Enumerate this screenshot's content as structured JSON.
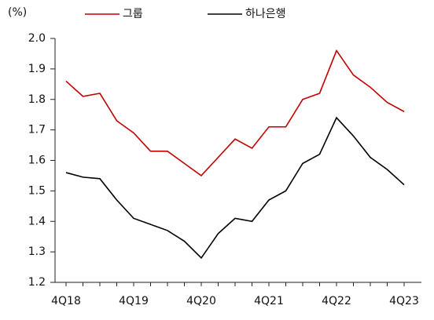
{
  "chart_data": {
    "type": "line",
    "y_label": "(%)",
    "categories": [
      "4Q18",
      null,
      null,
      null,
      "4Q19",
      null,
      null,
      null,
      "4Q20",
      null,
      null,
      null,
      "4Q21",
      null,
      null,
      null,
      "4Q22",
      null,
      null,
      null,
      "4Q23"
    ],
    "series": [
      {
        "name": "그룹",
        "color": "#c00000",
        "values": [
          1.86,
          1.81,
          1.82,
          1.73,
          1.69,
          1.63,
          1.63,
          1.59,
          1.55,
          1.61,
          1.67,
          1.64,
          1.71,
          1.71,
          1.8,
          1.82,
          1.96,
          1.88,
          1.84,
          1.79,
          1.76
        ]
      },
      {
        "name": "하나은행",
        "color": "#000000",
        "values": [
          1.56,
          1.545,
          1.54,
          1.47,
          1.41,
          1.39,
          1.37,
          1.335,
          1.28,
          1.36,
          1.41,
          1.4,
          1.47,
          1.5,
          1.59,
          1.62,
          1.74,
          1.68,
          1.61,
          1.57,
          1.52
        ]
      }
    ],
    "ylim": [
      1.2,
      2.0
    ],
    "yticks": [
      1.2,
      1.3,
      1.4,
      1.5,
      1.6,
      1.7,
      1.8,
      1.9,
      {
        "value": 2,
        "label": "2.0"
      }
    ],
    "grid": false
  }
}
